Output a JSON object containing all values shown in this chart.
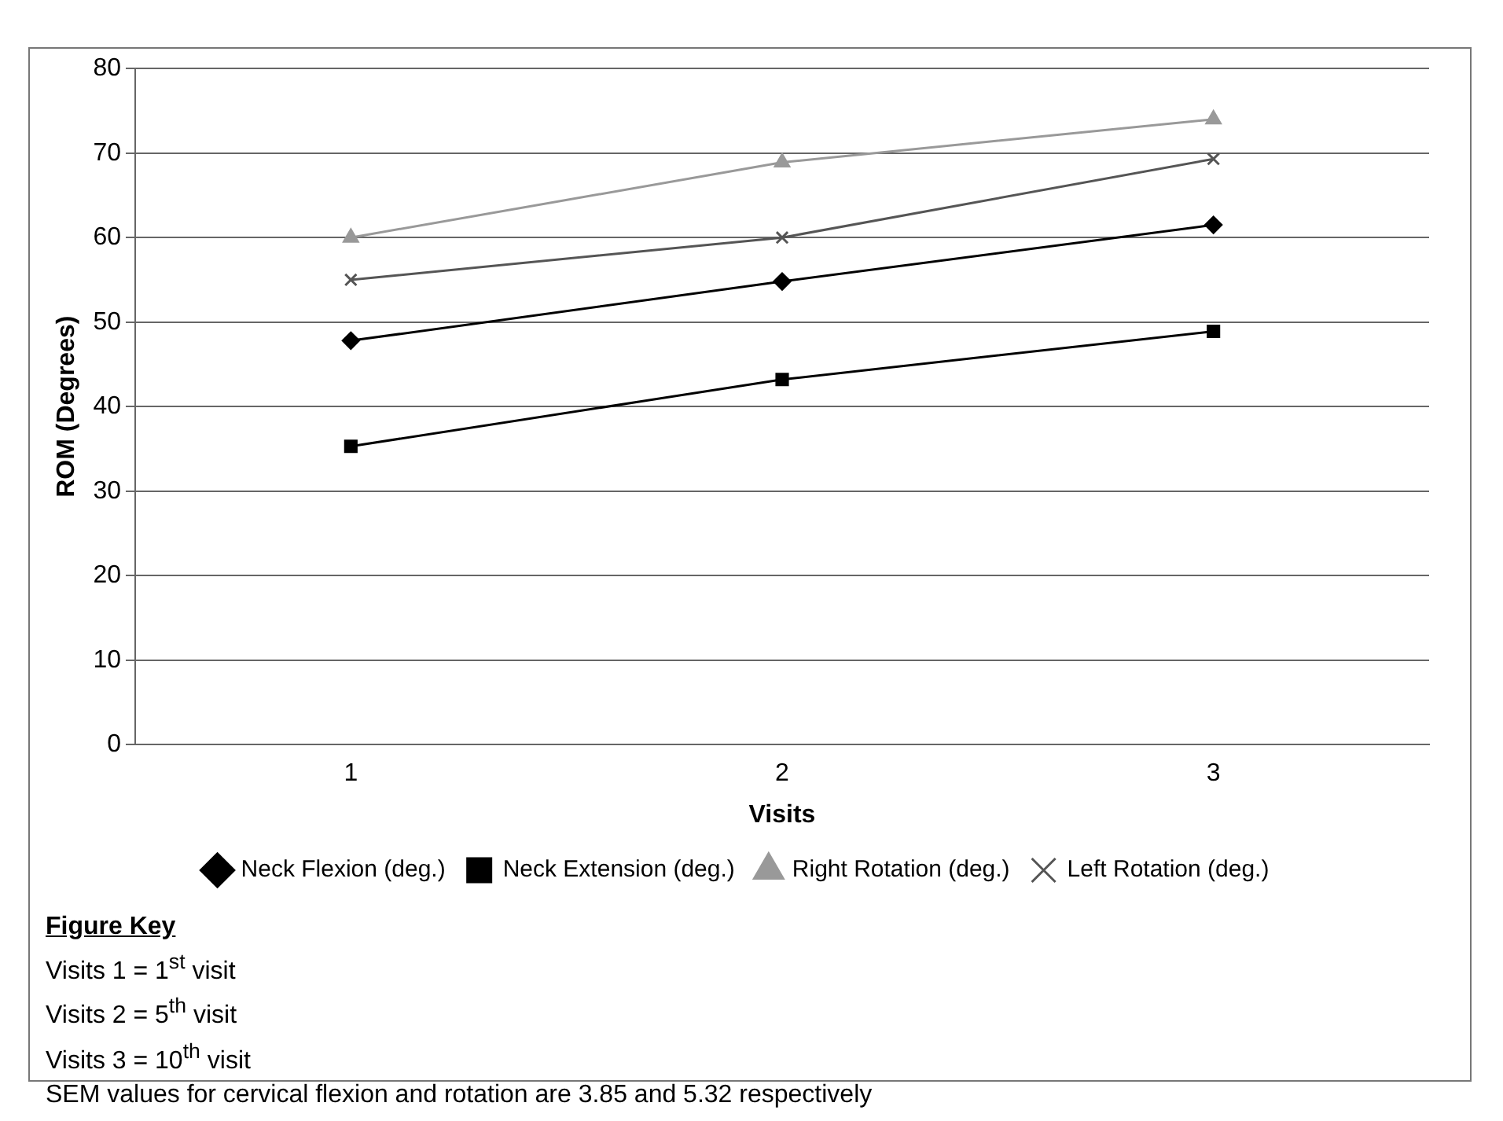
{
  "chart_data": {
    "type": "line",
    "xlabel": "Visits",
    "ylabel": "ROM (Degrees)",
    "categories": [
      "1",
      "2",
      "3"
    ],
    "series": [
      {
        "name": "Neck Flexion (deg.)",
        "color": "#000000",
        "marker": "diamond",
        "values": [
          47.8,
          54.8,
          61.5
        ]
      },
      {
        "name": "Neck Extension (deg.)",
        "color": "#000000",
        "marker": "square",
        "values": [
          35.3,
          43.2,
          48.9
        ]
      },
      {
        "name": "Right Rotation (deg.)",
        "color": "#999999",
        "marker": "triangle",
        "values": [
          60,
          68.9,
          74
        ]
      },
      {
        "name": "Left Rotation (deg.)",
        "color": "#555555",
        "marker": "cross",
        "values": [
          55,
          60,
          69.3
        ]
      }
    ],
    "ylim": [
      0,
      80
    ],
    "yticks": [
      0,
      10,
      20,
      30,
      40,
      50,
      60,
      70,
      80
    ],
    "grid": "y",
    "legend": "bottom",
    "line_style": "solid",
    "annotations": [
      "Figure Key",
      "Visits 1 = 1$^{st}$ visit",
      "Visits 2 = 5$^{th}$ visit",
      "Visits 3 = 10$^{th}$ visit",
      "SEM values for cervical flexion and rotation are 3.85 and 5.32 respectively"
    ]
  }
}
